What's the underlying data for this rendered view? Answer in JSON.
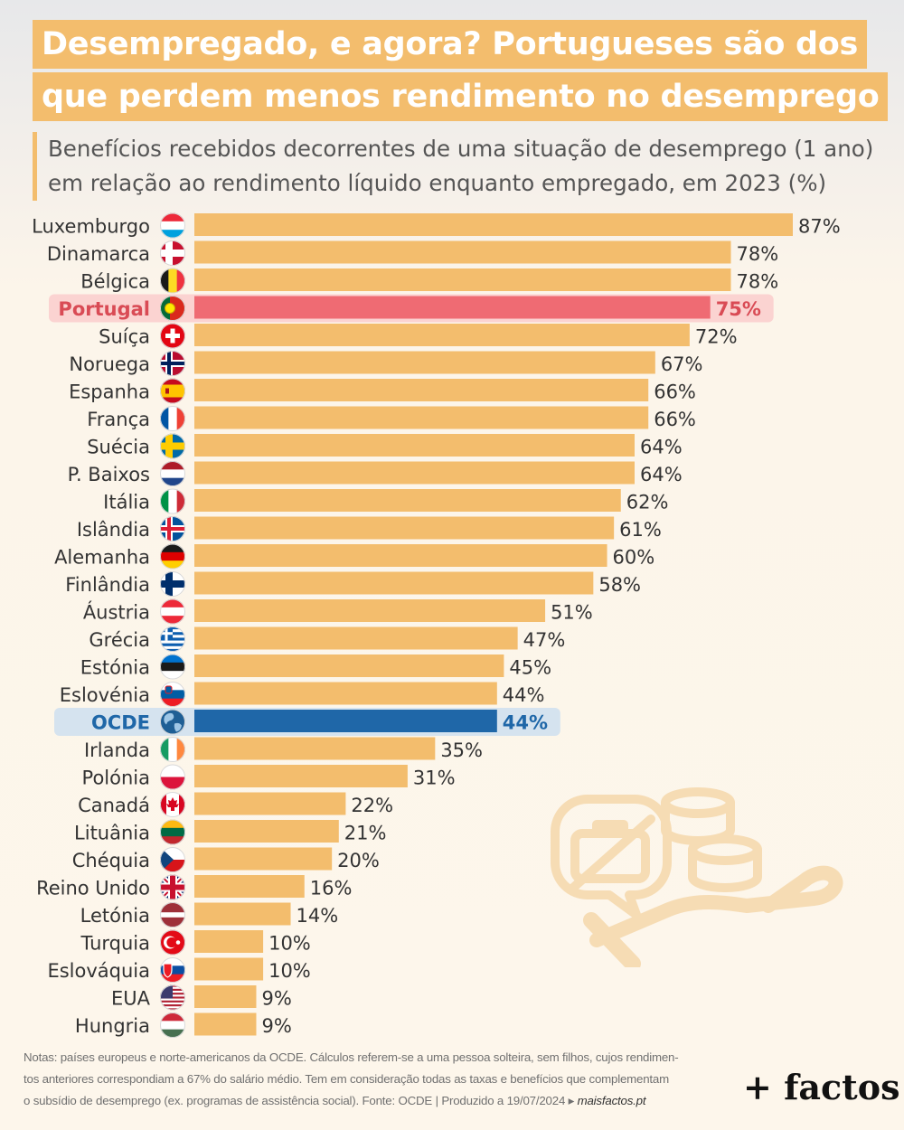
{
  "title": {
    "line1": "Desempregado, e agora? Portugueses são dos",
    "line2": "que perdem menos rendimento no desemprego"
  },
  "subtitle": {
    "line1": "Benefícios recebidos decorrentes de uma situação de desemprego (1 ano)",
    "line2": "em relação ao rendimento líquido enquanto empregado, em 2023 (%)"
  },
  "colors": {
    "bar": "#f3bd6d",
    "portugal_bar": "#ef6b73",
    "portugal_highlight": "#fbd3d1",
    "portugal_text": "#d94b55",
    "oecd_bar": "#1f67a8",
    "oecd_highlight": "#d5e3ef",
    "oecd_text": "#1f67a8",
    "label_text": "#333333"
  },
  "chart_data": {
    "type": "bar",
    "orientation": "horizontal",
    "value_suffix": "%",
    "xlim": [
      0,
      87
    ],
    "categories": [
      "Luxemburgo",
      "Dinamarca",
      "Bélgica",
      "Portugal",
      "Suíça",
      "Noruega",
      "Espanha",
      "França",
      "Suécia",
      "P. Baixos",
      "Itália",
      "Islândia",
      "Alemanha",
      "Finlândia",
      "Áustria",
      "Grécia",
      "Estónia",
      "Eslovénia",
      "OCDE",
      "Irlanda",
      "Polónia",
      "Canadá",
      "Lituânia",
      "Chéquia",
      "Reino Unido",
      "Letónia",
      "Turquia",
      "Eslováquia",
      "EUA",
      "Hungria"
    ],
    "values": [
      87,
      78,
      78,
      75,
      72,
      67,
      66,
      66,
      64,
      64,
      62,
      61,
      60,
      58,
      51,
      47,
      45,
      44,
      44,
      35,
      31,
      22,
      21,
      20,
      16,
      14,
      10,
      10,
      9,
      9
    ],
    "highlighted": {
      "Portugal": "portugal",
      "OCDE": "oecd"
    },
    "flag_icons": [
      "luxembourg-flag-icon",
      "denmark-flag-icon",
      "belgium-flag-icon",
      "portugal-flag-icon",
      "switzerland-flag-icon",
      "norway-flag-icon",
      "spain-flag-icon",
      "france-flag-icon",
      "sweden-flag-icon",
      "netherlands-flag-icon",
      "italy-flag-icon",
      "iceland-flag-icon",
      "germany-flag-icon",
      "finland-flag-icon",
      "austria-flag-icon",
      "greece-flag-icon",
      "estonia-flag-icon",
      "slovenia-flag-icon",
      "globe-icon",
      "ireland-flag-icon",
      "poland-flag-icon",
      "canada-flag-icon",
      "lithuania-flag-icon",
      "czechia-flag-icon",
      "uk-flag-icon",
      "latvia-flag-icon",
      "turkey-flag-icon",
      "slovakia-flag-icon",
      "usa-flag-icon",
      "hungary-flag-icon"
    ]
  },
  "notes": {
    "line1": "Notas: países europeus e norte-americanos da OCDE. Cálculos referem-se a uma pessoa solteira, sem filhos, cujos rendimen-",
    "line2": "tos anteriores correspondiam a 67% do salário médio. Tem em consideração todas as taxas e benefícios que complementam",
    "line3": "o subsídio de desemprego (ex. programas de assistência social). Fonte: OCDE | Produzido a 19/07/2024 ▸ ",
    "site": "maisfactos.pt"
  },
  "logo": "+ factos"
}
